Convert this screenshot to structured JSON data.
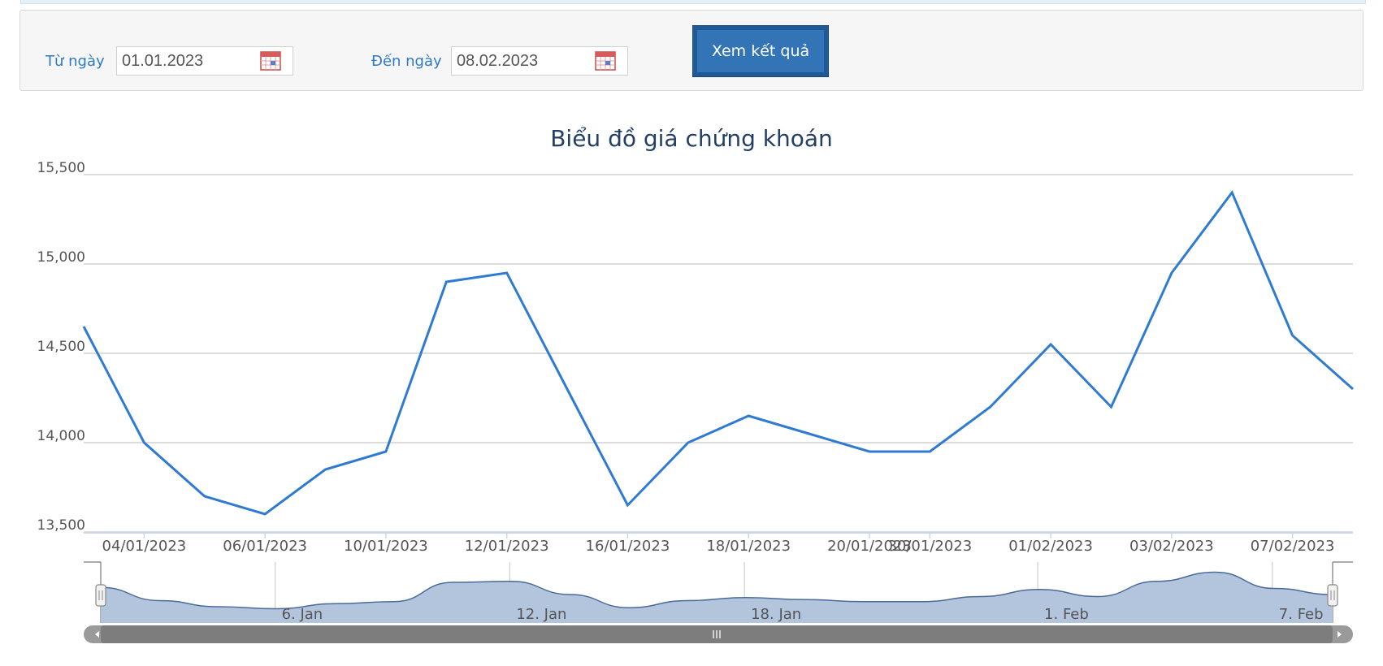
{
  "filter": {
    "from_label": "Từ ngày",
    "from_value": "01.01.2023",
    "to_label": "Đến ngày",
    "to_value": "08.02.2023",
    "submit_label": "Xem kết quả"
  },
  "colors": {
    "line": "#2f7bd2",
    "navigator_fill": "#b3c4dd",
    "navigator_line": "#4a6a99",
    "button": "#3374b7",
    "label": "#2d7bc6"
  },
  "chart_data": {
    "type": "line",
    "title": "Biểu đồ giá chứng khoán",
    "xlabel": "",
    "ylabel": "",
    "ylim": [
      13500,
      15500
    ],
    "yticks": [
      "15,500",
      "15,000",
      "14,500",
      "14,000",
      "13,500"
    ],
    "x": [
      "03/01/2023",
      "04/01/2023",
      "05/01/2023",
      "06/01/2023",
      "09/01/2023",
      "10/01/2023",
      "11/01/2023",
      "12/01/2023",
      "13/01/2023",
      "16/01/2023",
      "17/01/2023",
      "18/01/2023",
      "19/01/2023",
      "20/01/2023",
      "30/01/2023",
      "31/01/2023",
      "01/02/2023",
      "02/02/2023",
      "03/02/2023",
      "06/02/2023",
      "07/02/2023",
      "08/02/2023"
    ],
    "series": [
      {
        "values": [
          14650,
          14000,
          13700,
          13600,
          13850,
          13950,
          14900,
          14950,
          14300,
          13650,
          14000,
          14150,
          14050,
          13950,
          13950,
          14200,
          14550,
          14200,
          14950,
          15400,
          14600,
          14300
        ]
      }
    ],
    "xtick_labels": [
      {
        "label": "04/01/2023",
        "index": 1
      },
      {
        "label": "06/01/2023",
        "index": 3
      },
      {
        "label": "10/01/2023",
        "index": 5
      },
      {
        "label": "12/01/2023",
        "index": 7
      },
      {
        "label": "16/01/2023",
        "index": 9
      },
      {
        "label": "18/01/2023",
        "index": 11
      },
      {
        "label": "20/01/2023",
        "index": 13
      },
      {
        "label": "30/01/2023",
        "index": 14
      },
      {
        "label": "01/02/2023",
        "index": 16
      },
      {
        "label": "03/02/2023",
        "index": 18
      },
      {
        "label": "07/02/2023",
        "index": 20
      }
    ],
    "navigator_labels": [
      {
        "label": "6. Jan",
        "index": 3
      },
      {
        "label": "12. Jan",
        "index": 7
      },
      {
        "label": "18. Jan",
        "index": 11
      },
      {
        "label": "1. Feb",
        "index": 16
      },
      {
        "label": "7. Feb",
        "index": 20
      }
    ],
    "grid": true,
    "legend": "none"
  }
}
